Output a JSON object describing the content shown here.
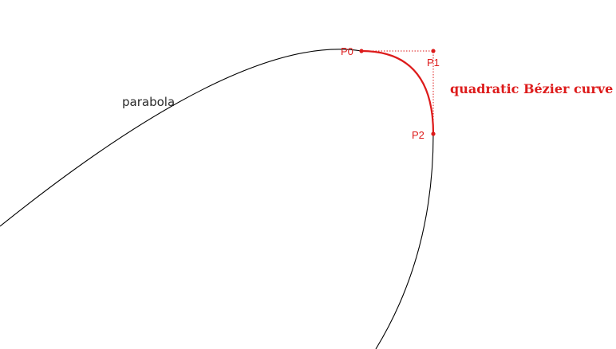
{
  "colors": {
    "parabola": "#000000",
    "bezier": "#dd1b1b",
    "background": "#ffffff"
  },
  "labels": {
    "parabola": "parabola",
    "bezier": "quadratic Bézier curve",
    "p0": "P0",
    "p1": "P1",
    "p2": "P2"
  }
}
